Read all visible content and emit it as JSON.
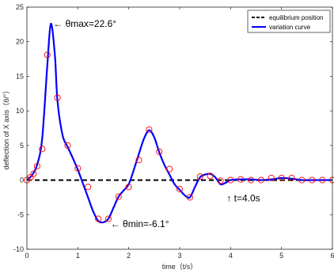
{
  "chart_data": {
    "type": "line",
    "xlabel": "time（t/s）",
    "ylabel": "deflection of X axis（θ/°）",
    "xlim": [
      0,
      6
    ],
    "ylim": [
      -10,
      25
    ],
    "xticks": [
      0,
      1,
      2,
      3,
      4,
      5,
      6
    ],
    "yticks": [
      -10,
      -5,
      0,
      5,
      10,
      15,
      20,
      25
    ],
    "grid": false,
    "legend_position": "top-right",
    "legend": [
      "equilibrium position",
      "variation curve"
    ],
    "colors": {
      "equilibrium": "#000000",
      "curve": "#0000ff",
      "markers": "#ff0000"
    },
    "series": [
      {
        "name": "equilibrium position",
        "style": "dashed",
        "x": [
          0,
          6
        ],
        "y": [
          0,
          0
        ]
      },
      {
        "name": "variation curve",
        "style": "solid",
        "x": [
          0,
          0.1,
          0.2,
          0.3,
          0.4,
          0.47,
          0.55,
          0.6,
          0.7,
          0.8,
          0.9,
          1.0,
          1.1,
          1.2,
          1.3,
          1.4,
          1.5,
          1.6,
          1.7,
          1.8,
          1.9,
          2.0,
          2.1,
          2.2,
          2.3,
          2.4,
          2.5,
          2.6,
          2.7,
          2.8,
          2.9,
          3.0,
          3.1,
          3.2,
          3.3,
          3.4,
          3.5,
          3.6,
          3.7,
          3.8,
          3.9,
          4.0,
          4.2,
          4.4,
          4.6,
          4.8,
          5.0,
          5.2,
          5.4,
          5.6,
          5.8,
          6.0
        ],
        "y": [
          0,
          0.7,
          2.2,
          6.0,
          16.5,
          22.6,
          18.0,
          11.5,
          6.5,
          4.8,
          3.2,
          1.5,
          -0.5,
          -2.5,
          -4.5,
          -5.9,
          -6.1,
          -5.6,
          -4.0,
          -2.4,
          -1.5,
          -0.6,
          1.5,
          3.8,
          6.0,
          7.2,
          6.2,
          4.0,
          2.2,
          0.8,
          -0.6,
          -1.4,
          -2.2,
          -2.5,
          -1.0,
          0.4,
          0.8,
          0.9,
          0.4,
          -0.6,
          -0.4,
          0.0,
          0.1,
          0.1,
          0.0,
          0.1,
          0.3,
          0.2,
          0.0,
          0.0,
          0.0,
          0.0
        ]
      },
      {
        "name": "",
        "style": "markers",
        "x": [
          0,
          0.07,
          0.13,
          0.2,
          0.3,
          0.4,
          0.6,
          0.8,
          1.0,
          1.2,
          1.4,
          1.6,
          1.8,
          2.0,
          2.2,
          2.4,
          2.6,
          2.8,
          3.0,
          3.2,
          3.4,
          3.6,
          3.8,
          4.0,
          4.2,
          4.4,
          4.6,
          4.8,
          5.0,
          5.2,
          5.4,
          5.6,
          5.8,
          6.0
        ],
        "y": [
          0,
          0.4,
          0.9,
          2.0,
          4.5,
          18.1,
          11.9,
          5.0,
          1.7,
          -1.0,
          -5.6,
          -5.6,
          -2.4,
          -1.0,
          2.9,
          7.3,
          4.1,
          1.6,
          -1.3,
          -2.5,
          0.5,
          0.6,
          -0.1,
          0.0,
          0.1,
          0.0,
          0.0,
          0.3,
          0.3,
          0.3,
          0.0,
          0.0,
          0.0,
          0.0
        ]
      }
    ],
    "annotations": [
      {
        "text": "θmax=22.6°",
        "x": 0.47,
        "y": 22.6,
        "arrow": "←"
      },
      {
        "text": "θmin=-6.1°",
        "x": 1.55,
        "y": -6.1,
        "arrow": "←"
      },
      {
        "text": "t=4.0s",
        "x": 4.0,
        "y": -1.0,
        "arrow": "↑"
      }
    ]
  }
}
